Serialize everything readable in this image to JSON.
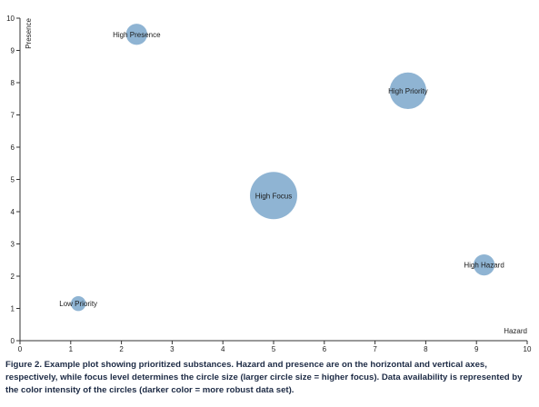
{
  "chart_data": {
    "type": "scatter",
    "title": "",
    "xlabel": "Hazard",
    "ylabel": "Presence",
    "xlim": [
      0,
      10
    ],
    "ylim": [
      0,
      10
    ],
    "x_ticks": [
      "0",
      "1",
      "2",
      "3",
      "4",
      "5",
      "6",
      "7",
      "8",
      "9",
      "10"
    ],
    "y_ticks": [
      "0",
      "1",
      "2",
      "3",
      "4",
      "5",
      "6",
      "7",
      "8",
      "9",
      "10"
    ],
    "grid": false,
    "points": [
      {
        "label": "High Presence",
        "x": 2.3,
        "y": 9.5,
        "size": 2
      },
      {
        "label": "High Priority",
        "x": 7.65,
        "y": 7.75,
        "size": 6
      },
      {
        "label": "High Focus",
        "x": 5.0,
        "y": 4.5,
        "size": 10
      },
      {
        "label": "High Hazard",
        "x": 9.15,
        "y": 2.35,
        "size": 2
      },
      {
        "label": "Low Priority",
        "x": 1.15,
        "y": 1.15,
        "size": 1
      }
    ],
    "colors": {
      "bubble": "#8fb4d3",
      "axis": "#333333"
    }
  },
  "caption": "Figure 2. Example plot showing prioritized substances. Hazard and presence are on the horizontal and vertical axes, respectively, while focus level determines the circle size (larger circle size = higher focus). Data availability is represented by the color intensity of the circles (darker color = more robust data set)."
}
